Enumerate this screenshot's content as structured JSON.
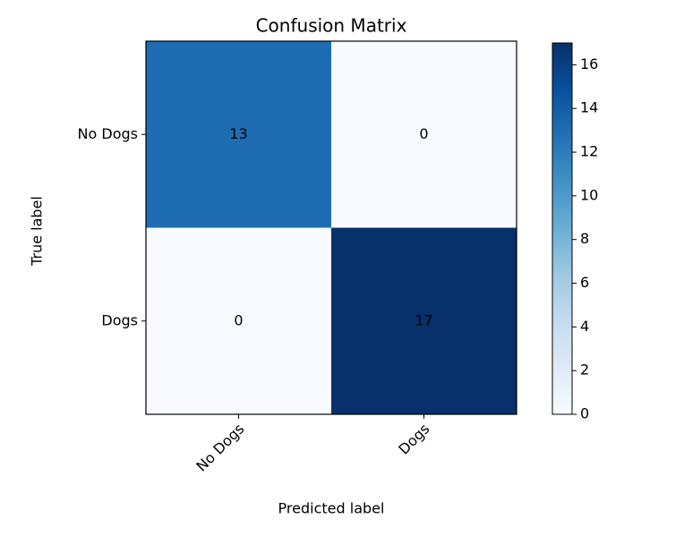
{
  "chart_data": {
    "type": "heatmap",
    "title": "Confusion Matrix",
    "x_label": "Predicted label",
    "y_label": "True label",
    "x_categories": [
      "No Dogs",
      "Dogs"
    ],
    "y_categories": [
      "No Dogs",
      "Dogs"
    ],
    "values": [
      [
        13,
        0
      ],
      [
        0,
        17
      ]
    ],
    "colormap": "Blues",
    "colorbar_lim": [
      0,
      17
    ],
    "colorbar_ticks": [
      0,
      2,
      4,
      6,
      8,
      10,
      12,
      14,
      16
    ]
  }
}
